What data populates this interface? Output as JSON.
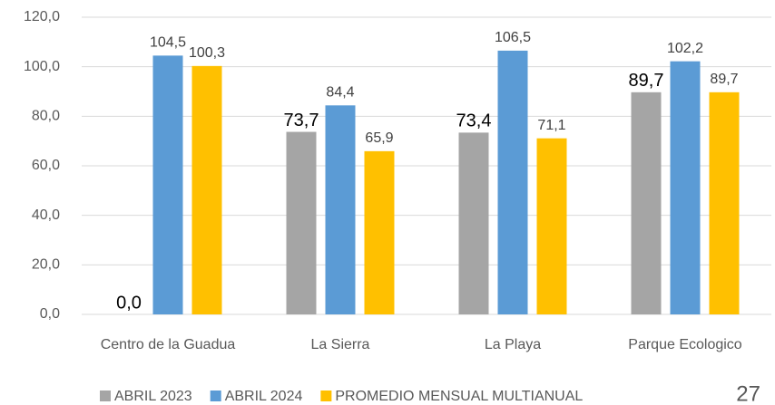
{
  "chart_data": {
    "type": "bar",
    "categories": [
      "Centro de la Guadua",
      "La Sierra",
      "La Playa",
      "Parque Ecologico"
    ],
    "series": [
      {
        "name": "ABRIL 2023",
        "color": "#a5a5a5",
        "values": [
          0,
          73.7,
          73.4,
          89.7
        ],
        "value_labels": [
          "0,0",
          "73,7",
          "73,4",
          "89,7"
        ]
      },
      {
        "name": "ABRIL 2024",
        "color": "#5b9bd5",
        "values": [
          104.5,
          84.4,
          106.5,
          102.2
        ],
        "value_labels": [
          "104,5",
          "84,4",
          "106,5",
          "102,2"
        ]
      },
      {
        "name": "PROMEDIO MENSUAL MULTIANUAL",
        "color": "#ffc000",
        "values": [
          100.3,
          65.9,
          71.1,
          89.7
        ],
        "value_labels": [
          "100,3",
          "65,9",
          "71,1",
          "89,7"
        ]
      }
    ],
    "ylim": [
      0,
      120
    ],
    "yticks": [
      {
        "value": 0,
        "label": "0,0"
      },
      {
        "value": 20,
        "label": "20,0"
      },
      {
        "value": 40,
        "label": "40,0"
      },
      {
        "value": 60,
        "label": "60,0"
      },
      {
        "value": 80,
        "label": "80,0"
      },
      {
        "value": 100,
        "label": "100,0"
      },
      {
        "value": 120,
        "label": "120,0"
      }
    ],
    "grid": true,
    "legend": "bottom"
  },
  "page_number": "27"
}
